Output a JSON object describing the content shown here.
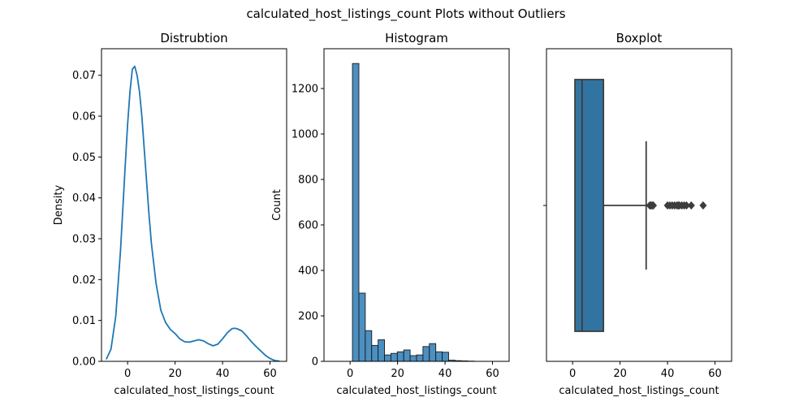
{
  "suptitle": "calculated_host_listings_count Plots without Outliers",
  "chart_data": [
    {
      "type": "line",
      "title": "Distrubtion",
      "xlabel": "calculated_host_listings_count",
      "ylabel": "Density",
      "xlim": [
        -11,
        67
      ],
      "ylim": [
        0,
        0.0765
      ],
      "xticks": [
        0,
        20,
        40,
        60
      ],
      "yticks": [
        0.0,
        0.01,
        0.02,
        0.03,
        0.04,
        0.05,
        0.06,
        0.07
      ],
      "ytick_labels": [
        "0.00",
        "0.01",
        "0.02",
        "0.03",
        "0.04",
        "0.05",
        "0.06",
        "0.07"
      ],
      "line_color": "#1f77b4",
      "x": [
        -9,
        -7,
        -5,
        -3,
        -1,
        0,
        1,
        2,
        3,
        4,
        5,
        6,
        7,
        8,
        9,
        10,
        12,
        14,
        16,
        18,
        20,
        22,
        24,
        26,
        28,
        30,
        32,
        34,
        36,
        38,
        40,
        42,
        44,
        45,
        46,
        48,
        50,
        52,
        54,
        56,
        58,
        60,
        62,
        64
      ],
      "y": [
        0.0005,
        0.003,
        0.011,
        0.027,
        0.048,
        0.058,
        0.066,
        0.0715,
        0.0722,
        0.07,
        0.066,
        0.06,
        0.052,
        0.044,
        0.036,
        0.029,
        0.019,
        0.0125,
        0.0095,
        0.0078,
        0.0068,
        0.0055,
        0.0048,
        0.0047,
        0.005,
        0.0053,
        0.005,
        0.0043,
        0.0038,
        0.0042,
        0.0055,
        0.007,
        0.008,
        0.0081,
        0.008,
        0.0075,
        0.0063,
        0.0049,
        0.0037,
        0.0026,
        0.0015,
        0.0007,
        0.0002,
        5e-05
      ]
    },
    {
      "type": "bar",
      "title": "Histogram",
      "xlabel": "calculated_host_listings_count",
      "ylabel": "Count",
      "xlim": [
        -11,
        67
      ],
      "ylim": [
        0,
        1375
      ],
      "xticks": [
        0,
        20,
        40,
        60
      ],
      "yticks": [
        0,
        200,
        400,
        600,
        800,
        1000,
        1200
      ],
      "bar_color": "#4c8fc1",
      "bin_edges": [
        1,
        3.7,
        6.4,
        9.1,
        11.8,
        14.5,
        17.2,
        19.9,
        22.6,
        25.3,
        28,
        30.7,
        33.4,
        36.1,
        38.8,
        41.5,
        44.2,
        46.9,
        49.6,
        52.3,
        55
      ],
      "values": [
        1310,
        300,
        135,
        70,
        95,
        28,
        35,
        42,
        50,
        25,
        28,
        65,
        78,
        42,
        40,
        5,
        3,
        2,
        1,
        0
      ]
    },
    {
      "type": "boxplot",
      "title": "Boxplot",
      "xlabel": "calculated_host_listings_count",
      "xlim": [
        -11,
        67
      ],
      "xticks": [
        0,
        20,
        40,
        60
      ],
      "box_color": "#3274a1",
      "whisker_low": 1,
      "q1": 1,
      "median": 4,
      "q3": 13,
      "whisker_high": 31,
      "outliers": [
        32.5,
        33,
        33.5,
        34,
        40,
        41,
        42,
        43,
        44,
        44.5,
        45,
        46,
        47,
        48,
        50,
        55
      ]
    }
  ]
}
